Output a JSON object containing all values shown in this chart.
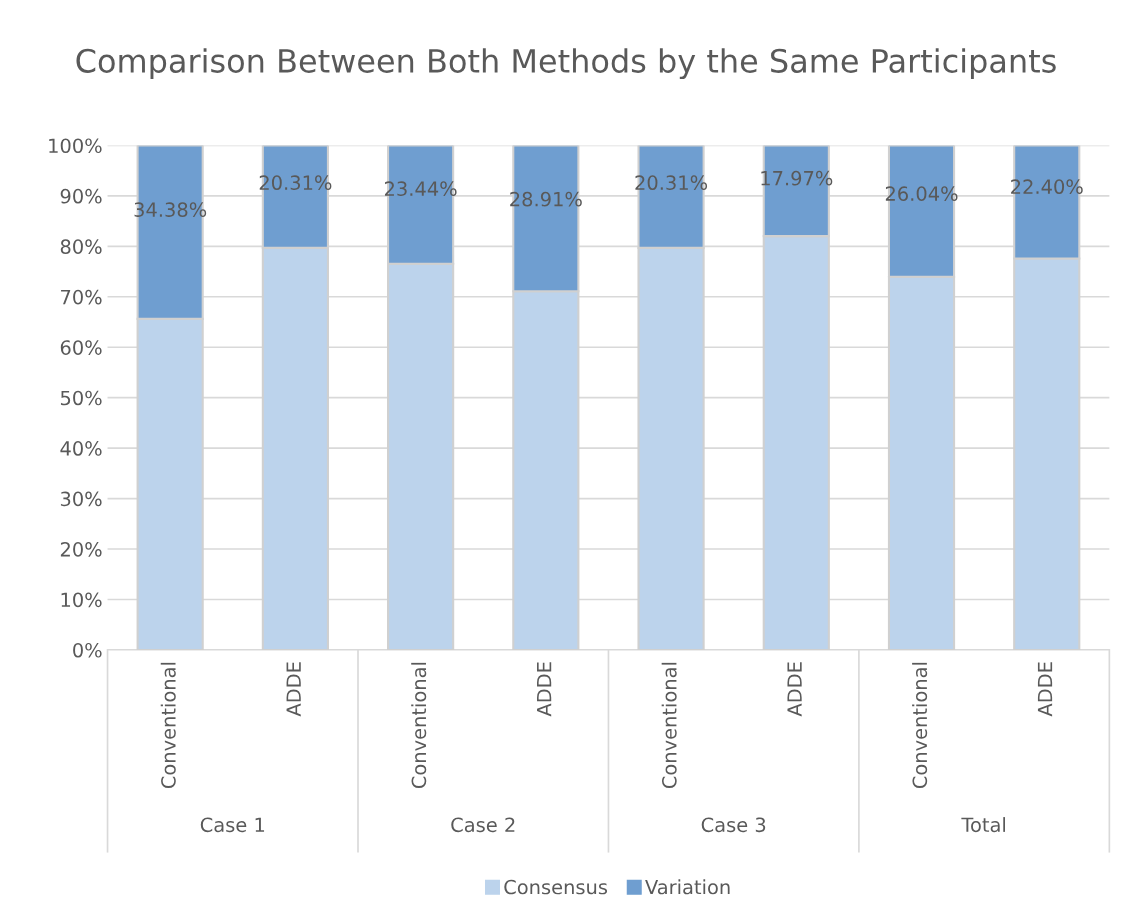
{
  "chart_data": {
    "type": "bar",
    "title": "Comparison Between Both Methods by the Same Participants",
    "categories": [
      "Conventional",
      "ADDE",
      "Conventional",
      "ADDE",
      "Conventional",
      "ADDE",
      "Conventional",
      "ADDE"
    ],
    "annotations": [
      "Case 1",
      "Case 2",
      "Case 3",
      "Total"
    ],
    "stacked": true,
    "series": [
      {
        "name": "Consensus",
        "color": "#bcd3ec",
        "values": [
          65.62,
          79.69,
          76.56,
          71.09,
          79.69,
          82.03,
          73.96,
          77.6
        ]
      },
      {
        "name": "Variation",
        "color": "#6f9ed0",
        "values": [
          34.38,
          20.31,
          23.44,
          28.91,
          20.31,
          17.97,
          26.04,
          22.4
        ],
        "value_labels": [
          "34.38%",
          "20.31%",
          "23.44%",
          "28.91%",
          "20.31%",
          "17.97%",
          "26.04%",
          "22.40%"
        ]
      }
    ],
    "ylim": [
      0,
      100
    ],
    "yticks": [
      {
        "value": 0,
        "label": "0%"
      },
      {
        "value": 10,
        "label": "10%"
      },
      {
        "value": 20,
        "label": "20%"
      },
      {
        "value": 30,
        "label": "30%"
      },
      {
        "value": 40,
        "label": "40%"
      },
      {
        "value": 50,
        "label": "50%"
      },
      {
        "value": 60,
        "label": "60%"
      },
      {
        "value": 70,
        "label": "70%"
      },
      {
        "value": 80,
        "label": "80%"
      },
      {
        "value": 90,
        "label": "90%"
      },
      {
        "value": 100,
        "label": "100%"
      }
    ],
    "grid": "y",
    "legend": "bottom"
  }
}
